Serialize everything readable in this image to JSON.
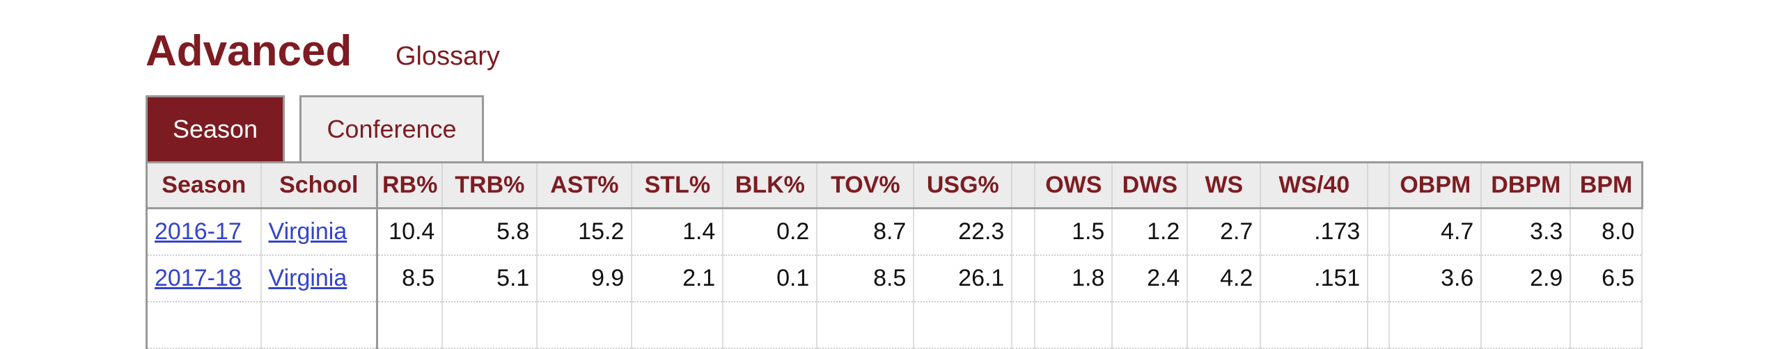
{
  "header": {
    "title": "Advanced",
    "glossary": "Glossary"
  },
  "tabs": [
    "Season",
    "Conference"
  ],
  "table": {
    "columns": [
      "Season",
      "School",
      "RB%",
      "TRB%",
      "AST%",
      "STL%",
      "BLK%",
      "TOV%",
      "USG%",
      "OWS",
      "DWS",
      "WS",
      "WS/40",
      "OBPM",
      "DBPM",
      "BPM"
    ],
    "rows": [
      [
        "2016-17",
        "Virginia",
        "10.4",
        "5.8",
        "15.2",
        "1.4",
        "0.2",
        "8.7",
        "22.3",
        "1.5",
        "1.2",
        "2.7",
        ".173",
        "4.7",
        "3.3",
        "8.0"
      ],
      [
        "2017-18",
        "Virginia",
        "8.5",
        "5.1",
        "9.9",
        "2.1",
        "0.1",
        "8.5",
        "26.1",
        "1.8",
        "2.4",
        "4.2",
        ".151",
        "3.6",
        "2.9",
        "6.5"
      ]
    ]
  }
}
